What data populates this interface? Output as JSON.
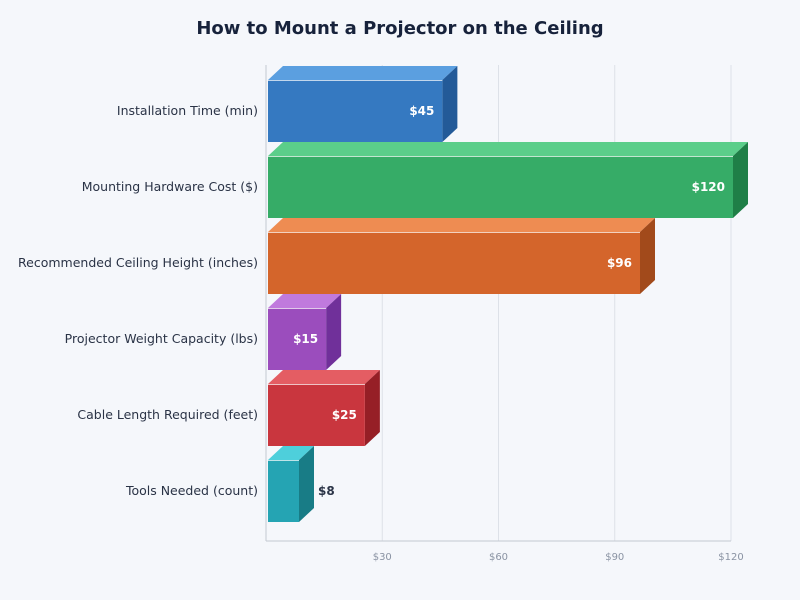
{
  "chart_data": {
    "type": "bar",
    "orientation": "horizontal",
    "style": "3d",
    "title": "How to Mount a Projector on the Ceiling",
    "xlabel": "",
    "ylabel": "",
    "categories": [
      "Installation Time (min)",
      "Mounting Hardware Cost ($)",
      "Recommended Ceiling Height (inches)",
      "Projector Weight Capacity (lbs)",
      "Cable Length Required (feet)",
      "Tools Needed (count)"
    ],
    "values": [
      45,
      120,
      96,
      15,
      25,
      8
    ],
    "value_labels": [
      "$45",
      "$120",
      "$96",
      "$15",
      "$25",
      "$8"
    ],
    "xlim": [
      0,
      120
    ],
    "xticks": [
      30,
      60,
      90,
      120
    ],
    "xtick_labels": [
      "$30",
      "$60",
      "$90",
      "$120"
    ],
    "grid": true,
    "legend": "none",
    "colors": [
      {
        "front": "#3579c1",
        "top": "#5b9fe0",
        "side": "#235a98"
      },
      {
        "front": "#36ac67",
        "top": "#5bce8a",
        "side": "#1f7f47"
      },
      {
        "front": "#d4652b",
        "top": "#ee8c52",
        "side": "#a24a1b"
      },
      {
        "front": "#9b4dbd",
        "top": "#c07add",
        "side": "#70309a"
      },
      {
        "front": "#c9363e",
        "top": "#e45d63",
        "side": "#961f26"
      },
      {
        "front": "#25a4b3",
        "top": "#4ecfdb",
        "side": "#187c86"
      }
    ]
  }
}
